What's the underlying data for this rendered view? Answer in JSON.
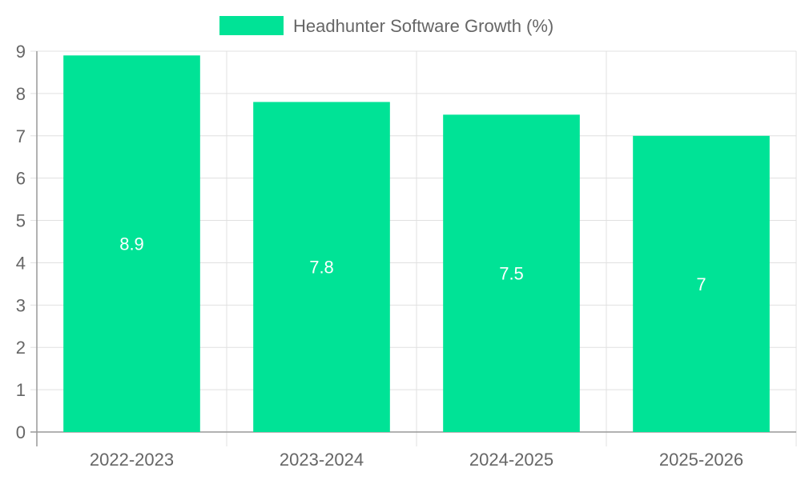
{
  "chart_data": {
    "type": "bar",
    "categories": [
      "2022-2023",
      "2023-2024",
      "2024-2025",
      "2025-2026"
    ],
    "series": [
      {
        "name": "Headhunter Software Growth (%)",
        "values": [
          8.9,
          7.8,
          7.5,
          7
        ],
        "color": "#00e396"
      }
    ],
    "ylim": [
      0,
      9
    ],
    "yticks": [
      0,
      1,
      2,
      3,
      4,
      5,
      6,
      7,
      8,
      9
    ],
    "xlabel": "",
    "ylabel": "",
    "grid": true,
    "legend": "top-center",
    "data_label_color": "#ffffff",
    "axis_text_color": "#666666",
    "grid_color": "#e0e0e0"
  }
}
